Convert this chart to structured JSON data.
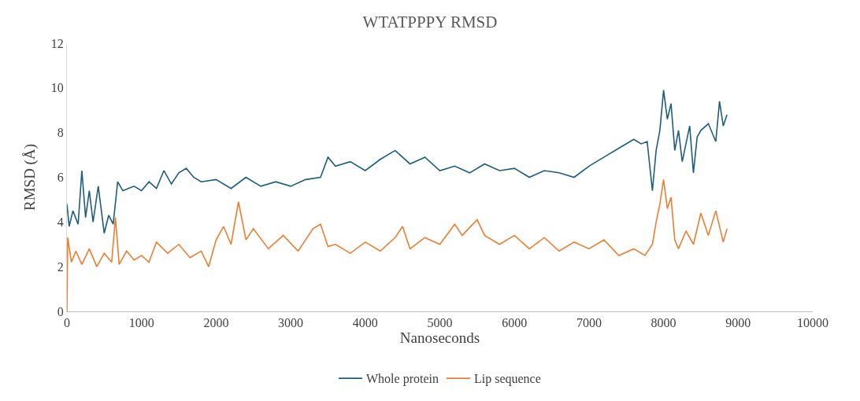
{
  "chart_data": {
    "type": "line",
    "title": "WTATPPPY RMSD",
    "xlabel": "Nanoseconds",
    "ylabel": "RMSD (Å)",
    "xlim": [
      0,
      10000
    ],
    "xticks": [
      0,
      1000,
      2000,
      3000,
      4000,
      5000,
      6000,
      7000,
      8000,
      9000,
      10000
    ],
    "ylim": [
      0,
      12
    ],
    "yticks": [
      0,
      2,
      4,
      6,
      8,
      10,
      12
    ],
    "grid": false,
    "legend": "bottom",
    "marker": "none",
    "line_style": "solid",
    "series": [
      {
        "name": "Whole protein",
        "color": "#1d5d7e",
        "x": [
          0,
          30,
          80,
          150,
          200,
          250,
          300,
          350,
          420,
          500,
          560,
          620,
          680,
          750,
          900,
          1000,
          1100,
          1200,
          1300,
          1400,
          1500,
          1600,
          1700,
          1800,
          2000,
          2200,
          2400,
          2600,
          2800,
          3000,
          3200,
          3400,
          3500,
          3600,
          3800,
          4000,
          4200,
          4400,
          4600,
          4800,
          5000,
          5200,
          5400,
          5600,
          5800,
          6000,
          6200,
          6400,
          6600,
          6800,
          7000,
          7200,
          7400,
          7600,
          7700,
          7780,
          7850,
          7900,
          7950,
          8000,
          8050,
          8100,
          8150,
          8200,
          8250,
          8300,
          8350,
          8400,
          8450,
          8500,
          8600,
          8700,
          8750,
          8800,
          8850
        ],
        "values": [
          4.8,
          3.8,
          4.5,
          3.9,
          6.3,
          4.2,
          5.4,
          4.0,
          5.6,
          3.5,
          4.3,
          3.9,
          5.8,
          5.4,
          5.6,
          5.4,
          5.8,
          5.5,
          6.3,
          5.7,
          6.2,
          6.4,
          6.0,
          5.8,
          5.9,
          5.5,
          6.0,
          5.6,
          5.8,
          5.6,
          5.9,
          6.0,
          6.9,
          6.5,
          6.7,
          6.3,
          6.8,
          7.2,
          6.6,
          6.9,
          6.3,
          6.5,
          6.2,
          6.6,
          6.3,
          6.4,
          6.0,
          6.3,
          6.2,
          6.0,
          6.5,
          6.9,
          7.3,
          7.7,
          7.5,
          7.6,
          5.4,
          7.2,
          8.1,
          9.9,
          8.6,
          9.3,
          7.2,
          8.1,
          6.7,
          7.5,
          8.3,
          6.2,
          7.8,
          8.1,
          8.4,
          7.6,
          9.4,
          8.3,
          8.8
        ]
      },
      {
        "name": "Lip sequence",
        "color": "#ed7d31",
        "x": [
          0,
          10,
          60,
          120,
          200,
          300,
          400,
          500,
          600,
          650,
          700,
          800,
          900,
          1000,
          1100,
          1200,
          1350,
          1500,
          1650,
          1800,
          1900,
          2000,
          2100,
          2200,
          2300,
          2400,
          2500,
          2700,
          2900,
          3100,
          3300,
          3400,
          3500,
          3600,
          3800,
          4000,
          4200,
          4400,
          4500,
          4600,
          4800,
          5000,
          5200,
          5300,
          5500,
          5600,
          5800,
          6000,
          6200,
          6400,
          6600,
          6800,
          7000,
          7200,
          7400,
          7600,
          7750,
          7850,
          7900,
          7950,
          8000,
          8050,
          8100,
          8150,
          8200,
          8300,
          8400,
          8500,
          8600,
          8700,
          8800,
          8850
        ],
        "values": [
          0.0,
          3.3,
          2.2,
          2.7,
          2.1,
          2.8,
          2.0,
          2.6,
          2.2,
          4.2,
          2.1,
          2.7,
          2.3,
          2.5,
          2.2,
          3.1,
          2.6,
          3.0,
          2.4,
          2.7,
          2.0,
          3.2,
          3.8,
          3.0,
          4.9,
          3.2,
          3.7,
          2.8,
          3.4,
          2.7,
          3.7,
          3.9,
          2.9,
          3.0,
          2.6,
          3.1,
          2.7,
          3.3,
          3.8,
          2.8,
          3.3,
          3.0,
          3.9,
          3.4,
          4.1,
          3.4,
          3.0,
          3.4,
          2.8,
          3.3,
          2.7,
          3.1,
          2.8,
          3.2,
          2.5,
          2.8,
          2.5,
          3.0,
          4.0,
          4.8,
          5.9,
          4.6,
          5.1,
          3.2,
          2.8,
          3.6,
          3.0,
          4.4,
          3.4,
          4.5,
          3.1,
          3.7
        ]
      }
    ]
  }
}
